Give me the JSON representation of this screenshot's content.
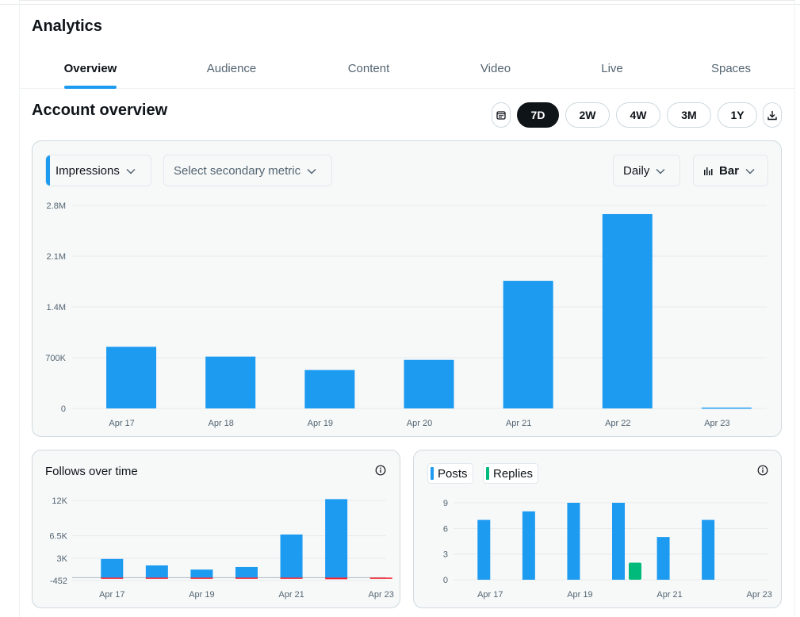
{
  "app": {
    "title": "Analytics"
  },
  "tabs": [
    {
      "label": "Overview",
      "active": true
    },
    {
      "label": "Audience"
    },
    {
      "label": "Content"
    },
    {
      "label": "Video"
    },
    {
      "label": "Live"
    },
    {
      "label": "Spaces"
    }
  ],
  "overview": {
    "title": "Account overview",
    "ranges": [
      "7D",
      "2W",
      "4W",
      "3M",
      "1Y"
    ],
    "selected_range": "7D",
    "icons": {
      "calendar": "calendar-icon",
      "download": "download-icon"
    }
  },
  "main_chart_controls": {
    "primary_metric": "Impressions",
    "secondary_metric_placeholder": "Select secondary metric",
    "granularity": "Daily",
    "chart_type": "Bar"
  },
  "colors": {
    "accent": "#1d9bf0",
    "replies": "#00ba7c",
    "negative": "#f4212e",
    "dark": "#0f1419"
  },
  "follows_card": {
    "title": "Follows over time"
  },
  "posts_card": {
    "legend": [
      "Posts",
      "Replies"
    ]
  },
  "chart_data": [
    {
      "type": "bar",
      "categories": [
        "Apr 17",
        "Apr 18",
        "Apr 19",
        "Apr 20",
        "Apr 21",
        "Apr 22",
        "Apr 23"
      ],
      "series": [
        {
          "name": "Impressions",
          "values": [
            850000,
            715000,
            530000,
            670000,
            1760000,
            2680000,
            12000
          ]
        }
      ],
      "yticks": [
        "0",
        "700K",
        "1.4M",
        "2.1M",
        "2.8M"
      ],
      "ytick_values": [
        0,
        700000,
        1400000,
        2100000,
        2800000
      ],
      "ylim": [
        0,
        2800000
      ],
      "grid": true
    },
    {
      "type": "bar",
      "title": "Follows over time",
      "categories": [
        "Apr 17",
        "Apr 18",
        "Apr 19",
        "Apr 20",
        "Apr 21",
        "Apr 22",
        "Apr 23"
      ],
      "xtick_labels": [
        "Apr 17",
        "",
        "Apr 19",
        "",
        "Apr 21",
        "",
        "Apr 23"
      ],
      "series": [
        {
          "values": [
            2900,
            1900,
            1250,
            1650,
            6700,
            12200,
            0
          ]
        },
        {
          "values": [
            -250,
            -250,
            -200,
            -200,
            -300,
            -452,
            -100
          ]
        }
      ],
      "yticks": [
        "-452",
        "3K",
        "6.5K",
        "12K"
      ],
      "ytick_values": [
        -452,
        3000,
        6500,
        12000
      ],
      "ylim": [
        -452,
        12000
      ],
      "grid": true
    },
    {
      "type": "bar",
      "categories": [
        "Apr 17",
        "Apr 18",
        "Apr 19",
        "Apr 20",
        "Apr 21",
        "Apr 22",
        "Apr 23"
      ],
      "xtick_labels": [
        "Apr 17",
        "",
        "Apr 19",
        "",
        "Apr 21",
        "",
        "Apr 23"
      ],
      "series": [
        {
          "name": "Posts",
          "values": [
            7,
            8,
            9,
            9,
            5,
            7,
            0
          ]
        },
        {
          "name": "Replies",
          "values": [
            0,
            0,
            0,
            2,
            0,
            0,
            0
          ]
        }
      ],
      "yticks": [
        "0",
        "3",
        "6",
        "9"
      ],
      "ytick_values": [
        0,
        3,
        6,
        9
      ],
      "ylim": [
        0,
        9
      ],
      "grid": true
    }
  ]
}
